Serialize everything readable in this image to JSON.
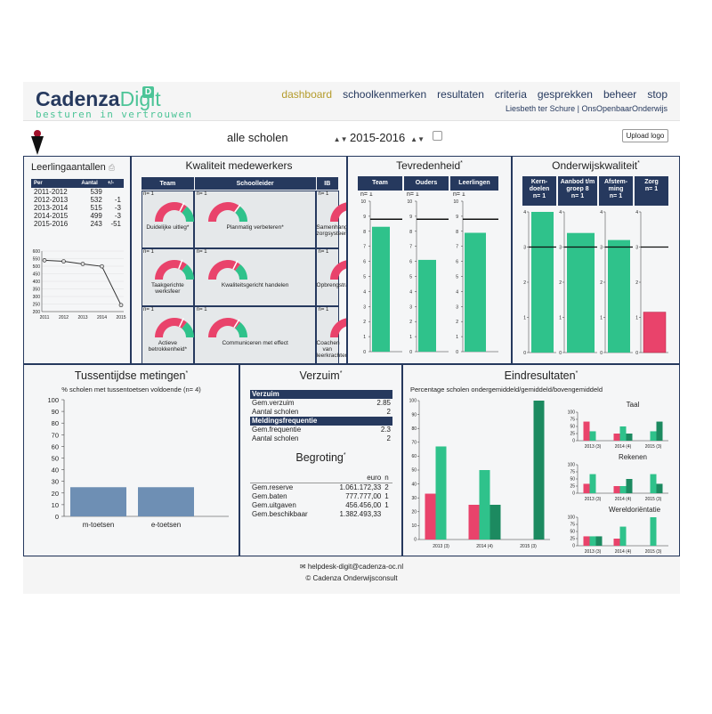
{
  "header": {
    "logo_cadenza": "Cadenza",
    "logo_digit": "Digit",
    "logo_badge": "D",
    "tagline": "besturen in vertrouwen",
    "nav": [
      "dashboard",
      "schoolkenmerken",
      "resultaten",
      "criteria",
      "gesprekken",
      "beheer",
      "stop"
    ],
    "user": "Liesbeth ter Schure",
    "org": "OnsOpenbaarOnderwijs"
  },
  "toolbar": {
    "school": "alle scholen",
    "year": "2015-2016",
    "upload": "Upload logo"
  },
  "colors": {
    "navy": "#26395e",
    "green": "#2fc28b",
    "red": "#e9436b",
    "darkgreen": "#1c8a60",
    "blue": "#6e8fb4"
  },
  "leerling": {
    "title": "Leerlingaantallen",
    "headers": [
      "Per",
      "Aantal",
      "+/-"
    ],
    "rows": [
      [
        "2011-2012",
        "539",
        ""
      ],
      [
        "2012-2013",
        "532",
        "-1"
      ],
      [
        "2013-2014",
        "515",
        "-3"
      ],
      [
        "2014-2015",
        "499",
        "-3"
      ],
      [
        "2015-2016",
        "243",
        "-51"
      ]
    ]
  },
  "kwaliteit": {
    "title": "Kwaliteit medewerkers",
    "headers": [
      "Team",
      "Schoolleider",
      "IB"
    ],
    "cells": [
      {
        "n": "n= 1",
        "label": "Duidelijke uitleg",
        "mark": "*",
        "level": 0.65
      },
      {
        "n": "n= 1",
        "label": "Planmatig verbeteren",
        "mark": "*",
        "level": 0.7
      },
      {
        "n": "n= 1",
        "label": "Samenhangend zorgsysteem",
        "mark": "",
        "level": 0.72
      },
      {
        "n": "n= 1",
        "label": "Taakgerichte werksfeer",
        "mark": "",
        "level": 0.62
      },
      {
        "n": "n= 1",
        "label": "Kwaliteitsgericht handelen",
        "mark": "",
        "level": 0.65
      },
      {
        "n": "n= 1",
        "label": "Opbrengstrapportages",
        "mark": "",
        "level": 0.66
      },
      {
        "n": "n= 1",
        "label": "Actieve betrokkenheid",
        "mark": "*",
        "level": 0.64
      },
      {
        "n": "n= 1",
        "label": "Communiceren met effect",
        "mark": "",
        "level": 0.68
      },
      {
        "n": "n= 1",
        "label": "Coachen van leerkrachten",
        "mark": "",
        "level": 0.7
      }
    ]
  },
  "tevreden": {
    "title": "Tevredenheid",
    "mark": "*",
    "columns": [
      "Team",
      "Ouders",
      "Leerlingen"
    ],
    "n": [
      "n= 1",
      "n= 1",
      "n= 1"
    ]
  },
  "onderwijs": {
    "title": "Onderwijskwaliteit",
    "mark": "*",
    "columns": [
      "Kern-doelen",
      "Aanbod t/m groep 8",
      "Afstem-ming",
      "Zorg"
    ],
    "n": [
      "n= 1",
      "n= 1",
      "n= 1",
      "n= 1"
    ]
  },
  "tussen": {
    "title": "Tussentijdse metingen",
    "mark": "*",
    "subtitle": "% scholen met tussentoetsen voldoende (n= 4)"
  },
  "verzuim": {
    "title": "Verzuim",
    "mark": "*",
    "section1": "Verzuim",
    "rows1": [
      [
        "Gem.verzuim",
        "2.85"
      ],
      [
        "Aantal scholen",
        "2"
      ]
    ],
    "section2": "Meldingsfrequentie",
    "rows2": [
      [
        "Gem.frequentie",
        "2.3"
      ],
      [
        "Aantal scholen",
        "2"
      ]
    ]
  },
  "begroting": {
    "title": "Begroting",
    "mark": "*",
    "unit": "euro",
    "ncol": "n",
    "rows": [
      [
        "Gem.reserve",
        "1.061.172,33",
        "2"
      ],
      [
        "Gem.baten",
        "777.777,00",
        "1"
      ],
      [
        "Gem.uitgaven",
        "456.456,00",
        "1"
      ],
      [
        "Gem.beschikbaar",
        "1.382.493,33",
        ""
      ]
    ]
  },
  "eind": {
    "title": "Eindresultaten",
    "mark": "*",
    "subtitle": "Percentage scholen ondergemiddeld/gemiddeld/bovengemiddeld",
    "mini_titles": [
      "Taal",
      "Rekenen",
      "Wereldoriëntatie"
    ]
  },
  "footer": {
    "mail": "helpdesk-digit@cadenza-oc.nl",
    "copy": "© Cadenza Onderwijsconsult"
  },
  "chart_data": [
    {
      "type": "line",
      "name": "leerlingaantallen",
      "x": [
        "2011",
        "2012",
        "2013",
        "2014",
        "2015"
      ],
      "values": [
        539,
        532,
        515,
        499,
        243
      ],
      "ylim": [
        200,
        600
      ],
      "yticks": [
        200,
        250,
        300,
        350,
        400,
        450,
        500,
        550,
        600
      ]
    },
    {
      "type": "bar",
      "name": "tevredenheid",
      "categories": [
        "Team",
        "Ouders",
        "Leerlingen"
      ],
      "values": [
        8.3,
        6.1,
        7.9
      ],
      "norm": 8.8,
      "ylim": [
        0,
        10
      ]
    },
    {
      "type": "bar",
      "name": "onderwijskwaliteit",
      "categories": [
        "Kern-doelen",
        "Aanbod t/m groep 8",
        "Afstem-ming",
        "Zorg"
      ],
      "values": [
        4.0,
        3.4,
        3.2,
        1.15
      ],
      "norm": [
        3,
        3,
        3,
        3
      ],
      "ylim": [
        0,
        4
      ]
    },
    {
      "type": "bar",
      "name": "tussentijdse metingen",
      "categories": [
        "m-toetsen",
        "e-toetsen"
      ],
      "values": [
        25,
        25
      ],
      "ylim": [
        0,
        100
      ]
    },
    {
      "type": "bar",
      "name": "eindresultaten",
      "categories": [
        "2013 (3)",
        "2014 (4)",
        "2015 (3)"
      ],
      "series": [
        {
          "values": [
            33,
            25,
            0
          ]
        },
        {
          "values": [
            67,
            50,
            0
          ]
        },
        {
          "values": [
            0,
            25,
            100
          ]
        }
      ],
      "ylim": [
        0,
        100
      ]
    },
    {
      "type": "bar",
      "name": "taal",
      "categories": [
        "2013 (3)",
        "2014 (4)",
        "2015 (3)"
      ],
      "series": [
        {
          "values": [
            67,
            25,
            0
          ]
        },
        {
          "values": [
            33,
            50,
            33
          ]
        },
        {
          "values": [
            0,
            25,
            67
          ]
        }
      ],
      "ylim": [
        0,
        100
      ]
    },
    {
      "type": "bar",
      "name": "rekenen",
      "categories": [
        "2013 (3)",
        "2014 (4)",
        "2015 (3)"
      ],
      "series": [
        {
          "values": [
            33,
            25,
            0
          ]
        },
        {
          "values": [
            67,
            25,
            67
          ]
        },
        {
          "values": [
            0,
            50,
            33
          ]
        }
      ],
      "ylim": [
        0,
        100
      ]
    },
    {
      "type": "bar",
      "name": "wereldorientatie",
      "categories": [
        "2013 (3)",
        "2014 (4)",
        "2015 (3)"
      ],
      "series": [
        {
          "values": [
            33,
            25,
            0
          ]
        },
        {
          "values": [
            33,
            67,
            100
          ]
        },
        {
          "values": [
            33,
            0,
            0
          ]
        }
      ],
      "ylim": [
        0,
        100
      ]
    }
  ]
}
